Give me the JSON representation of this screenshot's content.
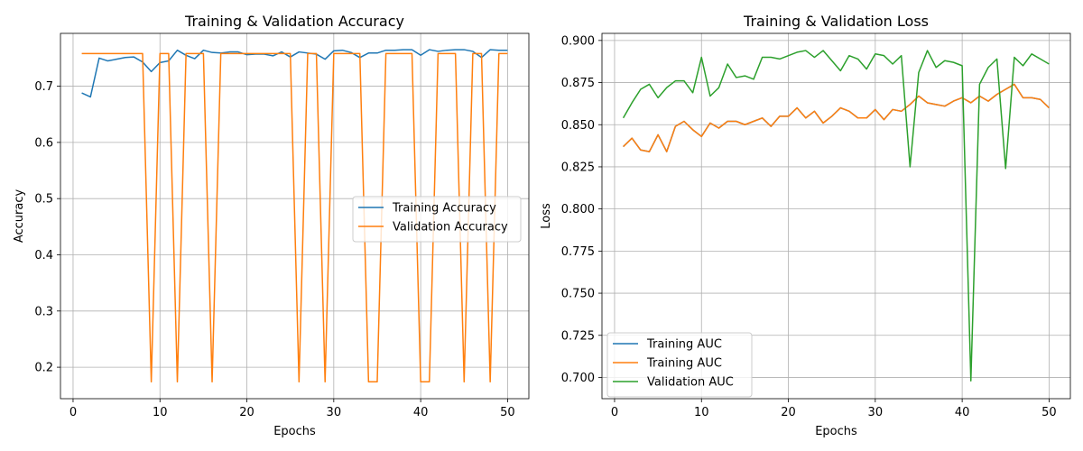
{
  "chart_data": [
    {
      "type": "line",
      "title": "Training & Validation Accuracy",
      "xlabel": "Epochs",
      "ylabel": "Accuracy",
      "xlim": [
        -1.45,
        52.45
      ],
      "ylim": [
        0.144,
        0.794
      ],
      "xticks": [
        0,
        10,
        20,
        30,
        40,
        50
      ],
      "xtick_labels": [
        "0",
        "10",
        "20",
        "30",
        "40",
        "50"
      ],
      "yticks": [
        0.2,
        0.3,
        0.4,
        0.5,
        0.6,
        0.7
      ],
      "ytick_labels": [
        "0.2",
        "0.3",
        "0.4",
        "0.5",
        "0.6",
        "0.7"
      ],
      "grid": true,
      "legend_position": "center-right",
      "x": [
        1,
        2,
        3,
        4,
        5,
        6,
        7,
        8,
        9,
        10,
        11,
        12,
        13,
        14,
        15,
        16,
        17,
        18,
        19,
        20,
        21,
        22,
        23,
        24,
        25,
        26,
        27,
        28,
        29,
        30,
        31,
        32,
        33,
        34,
        35,
        36,
        37,
        38,
        39,
        40,
        41,
        42,
        43,
        44,
        45,
        46,
        47,
        48,
        49,
        50
      ],
      "series": [
        {
          "name": "Training Accuracy",
          "color": "#1f77b4",
          "values": [
            0.688,
            0.681,
            0.75,
            0.745,
            0.748,
            0.751,
            0.752,
            0.743,
            0.726,
            0.742,
            0.745,
            0.764,
            0.755,
            0.749,
            0.764,
            0.76,
            0.759,
            0.761,
            0.761,
            0.756,
            0.757,
            0.757,
            0.754,
            0.761,
            0.752,
            0.761,
            0.759,
            0.757,
            0.748,
            0.763,
            0.764,
            0.76,
            0.751,
            0.759,
            0.759,
            0.764,
            0.764,
            0.765,
            0.765,
            0.755,
            0.765,
            0.762,
            0.764,
            0.765,
            0.765,
            0.762,
            0.751,
            0.765,
            0.764,
            0.764
          ]
        },
        {
          "name": "Validation Accuracy",
          "color": "#ff7f0e",
          "values": [
            0.758,
            0.758,
            0.758,
            0.758,
            0.758,
            0.758,
            0.758,
            0.758,
            0.174,
            0.758,
            0.758,
            0.174,
            0.758,
            0.758,
            0.758,
            0.174,
            0.758,
            0.758,
            0.758,
            0.758,
            0.758,
            0.758,
            0.758,
            0.758,
            0.758,
            0.174,
            0.758,
            0.758,
            0.174,
            0.758,
            0.758,
            0.758,
            0.758,
            0.174,
            0.174,
            0.758,
            0.758,
            0.758,
            0.758,
            0.174,
            0.174,
            0.758,
            0.758,
            0.758,
            0.174,
            0.758,
            0.758,
            0.174,
            0.758,
            0.758
          ]
        }
      ]
    },
    {
      "type": "line",
      "title": "Training & Validation Loss",
      "xlabel": "Epochs",
      "ylabel": "Loss",
      "xlim": [
        -1.45,
        52.45
      ],
      "ylim": [
        0.6874,
        0.9042
      ],
      "xticks": [
        0,
        10,
        20,
        30,
        40,
        50
      ],
      "xtick_labels": [
        "0",
        "10",
        "20",
        "30",
        "40",
        "50"
      ],
      "yticks": [
        0.7,
        0.725,
        0.75,
        0.775,
        0.8,
        0.825,
        0.85,
        0.875,
        0.9
      ],
      "ytick_labels": [
        "0.700",
        "0.725",
        "0.750",
        "0.775",
        "0.800",
        "0.825",
        "0.850",
        "0.875",
        "0.900"
      ],
      "grid": true,
      "legend_position": "lower-left",
      "x": [
        1,
        2,
        3,
        4,
        5,
        6,
        7,
        8,
        9,
        10,
        11,
        12,
        13,
        14,
        15,
        16,
        17,
        18,
        19,
        20,
        21,
        22,
        23,
        24,
        25,
        26,
        27,
        28,
        29,
        30,
        31,
        32,
        33,
        34,
        35,
        36,
        37,
        38,
        39,
        40,
        41,
        42,
        43,
        44,
        45,
        46,
        47,
        48,
        49,
        50
      ],
      "series": [
        {
          "name": "Training AUC",
          "color": "#1f77b4",
          "values": [
            0.837,
            0.842,
            0.835,
            0.834,
            0.844,
            0.834,
            0.849,
            0.852,
            0.847,
            0.843,
            0.851,
            0.848,
            0.852,
            0.852,
            0.85,
            0.852,
            0.854,
            0.849,
            0.855,
            0.855,
            0.86,
            0.854,
            0.858,
            0.851,
            0.855,
            0.86,
            0.858,
            0.854,
            0.854,
            0.859,
            0.853,
            0.859,
            0.858,
            0.862,
            0.867,
            0.863,
            0.862,
            0.861,
            0.864,
            0.866,
            0.863,
            0.867,
            0.864,
            0.868,
            0.871,
            0.874,
            0.866,
            0.866,
            0.865,
            0.86
          ]
        },
        {
          "name": "Training AUC",
          "color": "#ff7f0e",
          "values": [
            0.837,
            0.842,
            0.835,
            0.834,
            0.844,
            0.834,
            0.849,
            0.852,
            0.847,
            0.843,
            0.851,
            0.848,
            0.852,
            0.852,
            0.85,
            0.852,
            0.854,
            0.849,
            0.855,
            0.855,
            0.86,
            0.854,
            0.858,
            0.851,
            0.855,
            0.86,
            0.858,
            0.854,
            0.854,
            0.859,
            0.853,
            0.859,
            0.858,
            0.862,
            0.867,
            0.863,
            0.862,
            0.861,
            0.864,
            0.866,
            0.863,
            0.867,
            0.864,
            0.868,
            0.871,
            0.874,
            0.866,
            0.866,
            0.865,
            0.86
          ]
        },
        {
          "name": "Validation AUC",
          "color": "#2ca02c",
          "values": [
            0.854,
            0.863,
            0.871,
            0.874,
            0.866,
            0.872,
            0.876,
            0.876,
            0.869,
            0.89,
            0.867,
            0.872,
            0.886,
            0.878,
            0.879,
            0.877,
            0.89,
            0.89,
            0.889,
            0.891,
            0.893,
            0.894,
            0.89,
            0.894,
            0.888,
            0.882,
            0.891,
            0.889,
            0.883,
            0.892,
            0.891,
            0.886,
            0.891,
            0.825,
            0.881,
            0.894,
            0.884,
            0.888,
            0.887,
            0.885,
            0.698,
            0.874,
            0.884,
            0.889,
            0.824,
            0.89,
            0.885,
            0.892,
            0.889,
            0.886
          ]
        }
      ]
    }
  ]
}
